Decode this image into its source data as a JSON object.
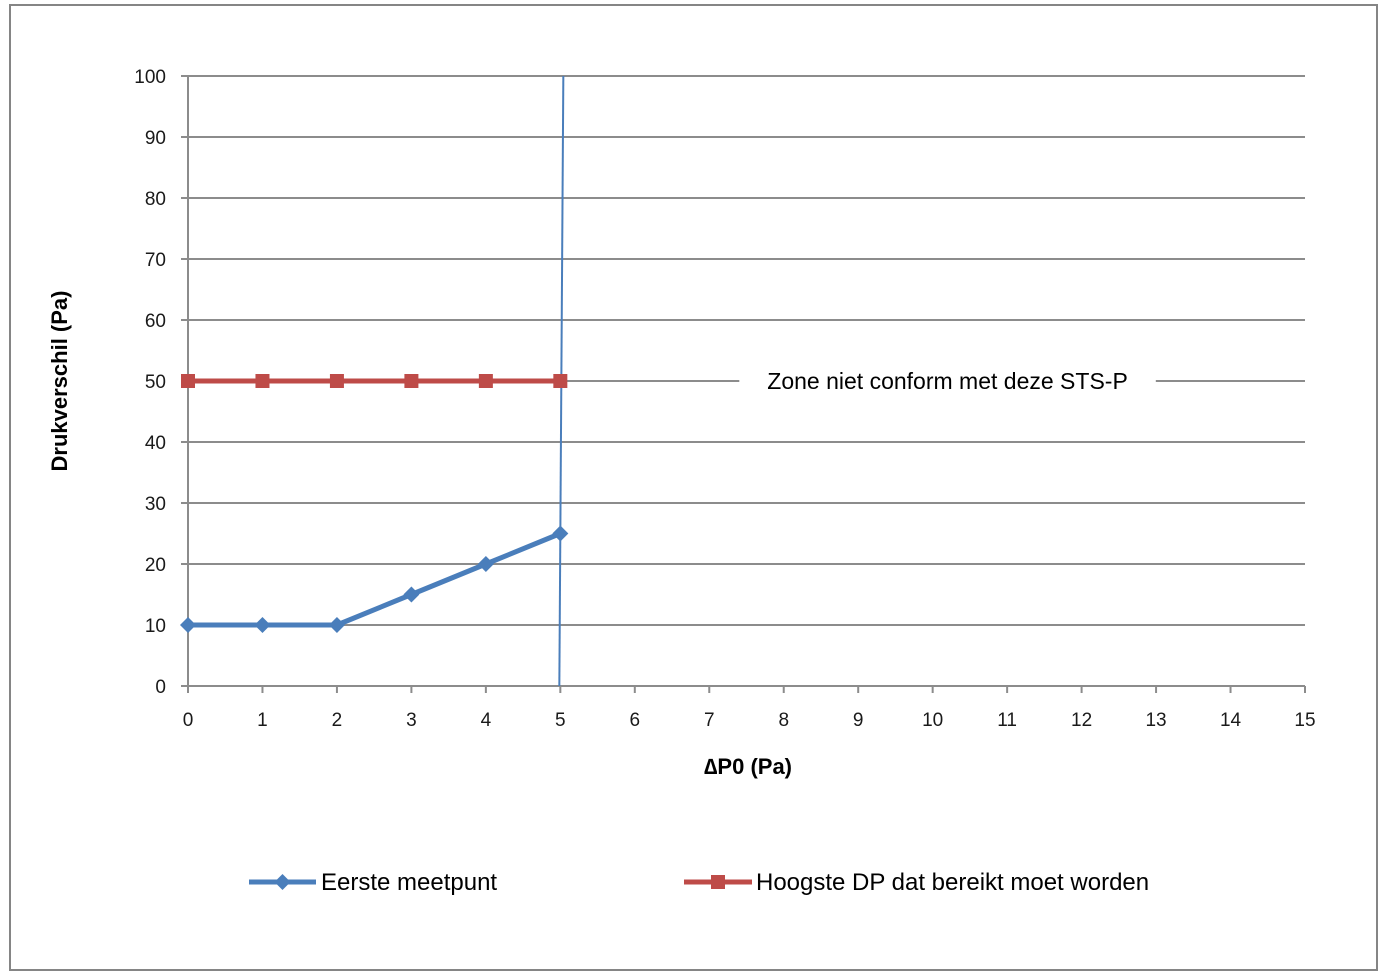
{
  "chart_data": {
    "type": "line",
    "xlabel": "∆P0 (Pa)",
    "ylabel": "Drukverschil (Pa)",
    "xlim": [
      0,
      15
    ],
    "ylim": [
      0,
      100
    ],
    "x_ticks": [
      0,
      1,
      2,
      3,
      4,
      5,
      6,
      7,
      8,
      9,
      10,
      11,
      12,
      13,
      14,
      15
    ],
    "y_ticks": [
      0,
      10,
      20,
      30,
      40,
      50,
      60,
      70,
      80,
      90,
      100
    ],
    "grid": "horizontal",
    "legend_position": "bottom",
    "series": [
      {
        "name": "Eerste meetpunt",
        "color": "#4a7ebb",
        "marker": "diamond",
        "x": [
          0,
          1,
          2,
          3,
          4,
          5
        ],
        "y": [
          10,
          10,
          10,
          15,
          20,
          25
        ]
      },
      {
        "name": "Hoogste DP dat bereikt moet worden",
        "color": "#be4b48",
        "marker": "square",
        "x": [
          0,
          1,
          2,
          3,
          4,
          5
        ],
        "y": [
          50,
          50,
          50,
          50,
          50,
          50
        ]
      }
    ],
    "annotations": [
      {
        "type": "vertical-line",
        "x": 5,
        "color": "#4a7ebb"
      },
      {
        "type": "text",
        "text": "Zone niet conform met deze STS-P",
        "x": 10.2,
        "y": 50
      }
    ]
  }
}
